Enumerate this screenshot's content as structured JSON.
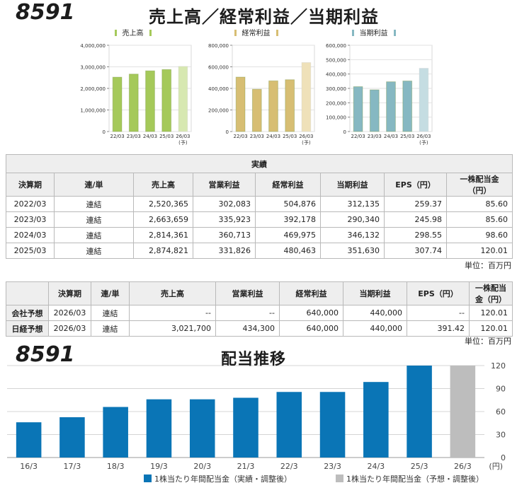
{
  "header": {
    "code": "8591",
    "title": "売上高／経常利益／当期利益"
  },
  "mini_charts": [
    {
      "legend": "売上高",
      "color": "#a5c95a",
      "forecast_color": "#d7e8b1",
      "chart_data": {
        "type": "bar",
        "categories": [
          "22/03",
          "23/03",
          "24/03",
          "25/03",
          "26/03"
        ],
        "forecast_note": "(予)",
        "values": [
          2520365,
          2663659,
          2814361,
          2874821,
          3021700
        ],
        "ylim": [
          0,
          4000000
        ],
        "yticks": [
          "0",
          "1,000,000",
          "2,000,000",
          "3,000,000",
          "4,000,000"
        ]
      }
    },
    {
      "legend": "経常利益",
      "color": "#d7be73",
      "forecast_color": "#efe1b9",
      "chart_data": {
        "type": "bar",
        "categories": [
          "22/03",
          "23/03",
          "24/03",
          "25/03",
          "26/03"
        ],
        "forecast_note": "(予)",
        "values": [
          504876,
          392178,
          469975,
          480463,
          640000
        ],
        "ylim": [
          0,
          800000
        ],
        "yticks": [
          "0",
          "200,000",
          "400,000",
          "600,000",
          "800,000"
        ]
      }
    },
    {
      "legend": "当期利益",
      "color": "#86b8c2",
      "forecast_color": "#c5dde2",
      "chart_data": {
        "type": "bar",
        "categories": [
          "22/03",
          "23/03",
          "24/03",
          "25/03",
          "26/03"
        ],
        "forecast_note": "(予)",
        "values": [
          312135,
          290340,
          346132,
          351630,
          440000
        ],
        "ylim": [
          0,
          600000
        ],
        "yticks": [
          "0",
          "100,000",
          "200,000",
          "300,000",
          "400,000",
          "500,000",
          "600,000"
        ]
      }
    }
  ],
  "results_table": {
    "caption": "実績",
    "headers": [
      "決算期",
      "連/単",
      "売上高",
      "営業利益",
      "経常利益",
      "当期利益",
      "EPS（円）",
      "一株配当金（円）"
    ],
    "rows": [
      [
        "2022/03",
        "連結",
        "2,520,365",
        "302,083",
        "504,876",
        "312,135",
        "259.37",
        "85.60"
      ],
      [
        "2023/03",
        "連結",
        "2,663,659",
        "335,923",
        "392,178",
        "290,340",
        "245.98",
        "85.60"
      ],
      [
        "2024/03",
        "連結",
        "2,814,361",
        "360,713",
        "469,975",
        "346,132",
        "298.55",
        "98.60"
      ],
      [
        "2025/03",
        "連結",
        "2,874,821",
        "331,826",
        "480,463",
        "351,630",
        "307.74",
        "120.01"
      ]
    ],
    "unit": "単位：百万円"
  },
  "forecast_table": {
    "headers": [
      "",
      "決算期",
      "連/単",
      "売上高",
      "営業利益",
      "経常利益",
      "当期利益",
      "EPS（円）",
      "一株配当金（円）"
    ],
    "rows": [
      [
        "会社予想",
        "2026/03",
        "連結",
        "--",
        "--",
        "640,000",
        "440,000",
        "--",
        "120.01"
      ],
      [
        "日経予想",
        "2026/03",
        "連結",
        "3,021,700",
        "434,300",
        "640,000",
        "440,000",
        "391.42",
        "120.01"
      ]
    ],
    "unit": "単位：百万円"
  },
  "dividend": {
    "code": "8591",
    "title": "配当推移",
    "actual_color": "#0a75b6",
    "forecast_color": "#bdbdbd",
    "legend_actual": "1株当たり年間配当金（実績・調整後）",
    "legend_forecast": "1株当たり年間配当金（予想・調整後）",
    "chart_data": {
      "type": "bar",
      "categories": [
        "16/3",
        "17/3",
        "18/3",
        "19/3",
        "20/3",
        "21/3",
        "22/3",
        "23/3",
        "24/3",
        "25/3",
        "26/3"
      ],
      "values": [
        46,
        52.6,
        66,
        76,
        76,
        78,
        85.6,
        85.6,
        98.6,
        120.01,
        120.01
      ],
      "forecast": [
        false,
        false,
        false,
        false,
        false,
        false,
        false,
        false,
        false,
        false,
        true
      ],
      "ylim": [
        0,
        120
      ],
      "yticks": [
        "0",
        "30",
        "60",
        "90",
        "120"
      ],
      "unit": "(円)"
    }
  }
}
